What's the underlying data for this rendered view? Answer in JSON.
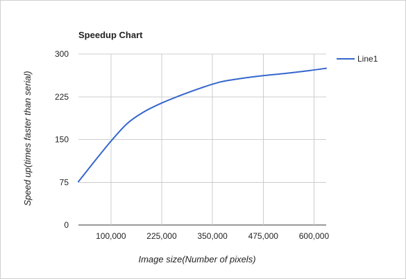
{
  "chart_data": {
    "type": "line",
    "title": "Speedup Chart",
    "xlabel": "Image size(Number of pixels)",
    "ylabel": "Speed up(times faster than serial)",
    "xlim": [
      20000,
      630000
    ],
    "ylim": [
      0,
      300
    ],
    "x_ticks": [
      100000,
      225000,
      350000,
      475000,
      600000
    ],
    "x_tick_labels": [
      "100,000",
      "225,000",
      "350,000",
      "475,000",
      "600,000"
    ],
    "y_ticks": [
      0,
      75,
      150,
      225,
      300
    ],
    "y_tick_labels": [
      "0",
      "75",
      "150",
      "225",
      "300"
    ],
    "grid": true,
    "legend_position": "right",
    "series": [
      {
        "name": "Line1",
        "color": "#3366cc",
        "x": [
          20000,
          60000,
          100000,
          140000,
          180000,
          225000,
          270000,
          320000,
          370000,
          420000,
          475000,
          530000,
          590000,
          630000
        ],
        "y": [
          76,
          112,
          147,
          178,
          198,
          214,
          227,
          240,
          251,
          257,
          262,
          266,
          271,
          275
        ]
      }
    ]
  }
}
